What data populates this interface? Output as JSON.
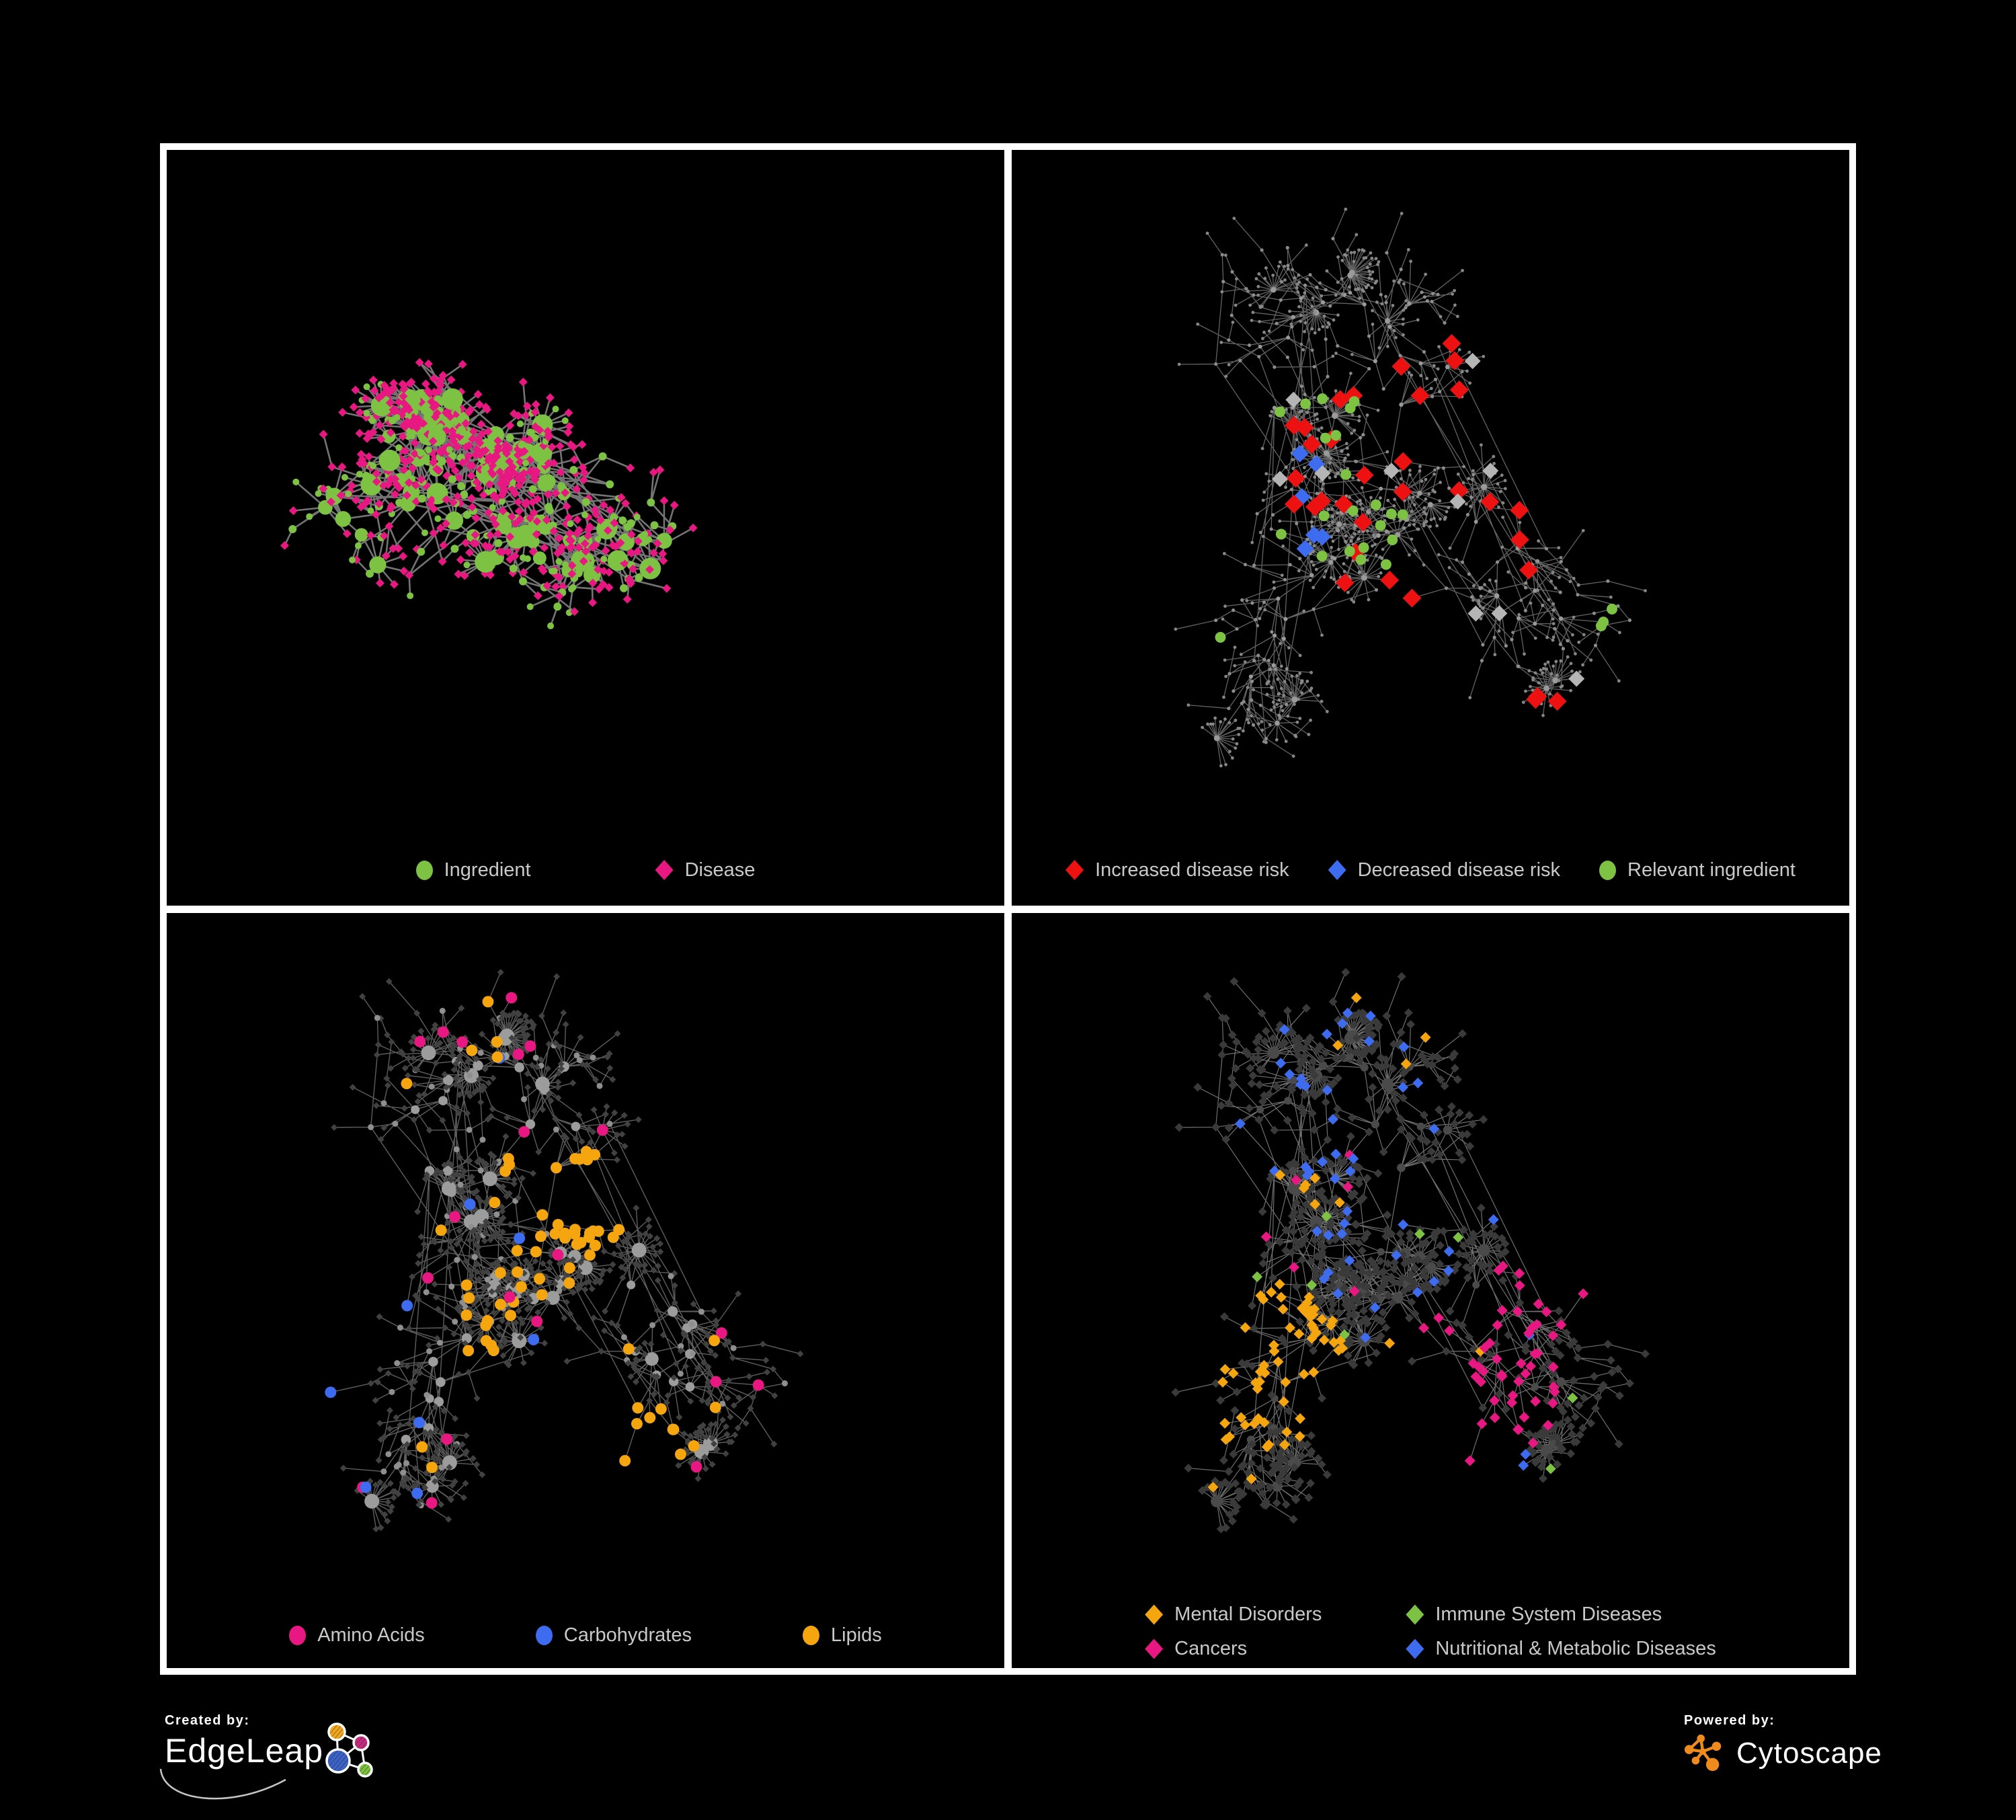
{
  "branding": {
    "created_by": "Created by:",
    "edgeleap": "EdgeLeap",
    "powered_by": "Powered by:",
    "cytoscape": "Cytoscape"
  },
  "colors": {
    "green": "#7dc242",
    "pink": "#e81781",
    "red": "#ed1111",
    "blue": "#3e6cf0",
    "orange": "#f5a50d",
    "silver": "#b5b5b5",
    "cytoscape_orange": "#ef8b1c",
    "legend_text": "#c9c9c9"
  },
  "panels": [
    {
      "id": "ingredient-disease",
      "legend": [
        {
          "shape": "circle",
          "color": "#7dc242",
          "label": "Ingredient"
        },
        {
          "shape": "diamond",
          "color": "#e81781",
          "label": "Disease"
        }
      ],
      "network": {
        "seed": 11,
        "nodes": 460,
        "roots": 6,
        "step": 42,
        "spread": 2.7,
        "centralBias": 0.45,
        "stars": 26,
        "starMin": 6,
        "starMax": 16,
        "starDist": 33,
        "cross": 46,
        "hubDeg": 5,
        "inset": [
          80,
          55,
          175
        ],
        "edge": {
          "color": "#7a7a7a",
          "width": 2.6,
          "opacity": 0.95
        },
        "styles": {
          "hub": {
            "shape": "circle",
            "color": "#7dc242",
            "rBase": 5.5,
            "rDeg": 0.9,
            "rMax": 16
          },
          "mid": [
            {
              "shape": "circle",
              "color": "#7dc242",
              "r": 6,
              "p": 0.5
            },
            {
              "shape": "diamond",
              "color": "#e81781",
              "r": 6.5,
              "p": 0.5
            }
          ],
          "leaf": [
            {
              "shape": "diamond",
              "color": "#e81781",
              "r": 6.5,
              "p": 0.82
            },
            {
              "shape": "circle",
              "color": "#7dc242",
              "r": 5,
              "p": 0.18
            }
          ]
        },
        "highlights": []
      }
    },
    {
      "id": "disease-risk",
      "legend": [
        {
          "shape": "diamond",
          "color": "#ed1111",
          "label": "Increased disease risk"
        },
        {
          "shape": "diamond",
          "color": "#3e6cf0",
          "label": "Decreased disease risk"
        },
        {
          "shape": "circle",
          "color": "#7dc242",
          "label": "Relevant ingredient"
        }
      ],
      "network": {
        "seed": 77,
        "nodes": 540,
        "roots": 7,
        "step": 44,
        "spread": 2.3,
        "centralBias": 0.3,
        "stars": 30,
        "starMin": 5,
        "starMax": 22,
        "starDist": 30,
        "cross": 26,
        "hubDeg": 5,
        "inset": [
          60,
          45,
          165
        ],
        "edge": {
          "color": "#6e6e6e",
          "width": 1.3,
          "opacity": 0.9
        },
        "styles": {
          "hub": {
            "shape": "circle",
            "color": "#9a9a9a",
            "rBase": 2.4,
            "rDeg": 0.1,
            "rMax": 5
          },
          "mid": [
            {
              "shape": "circle",
              "color": "#8d8d8d",
              "r": 2.6,
              "p": 1
            }
          ],
          "leaf": [
            {
              "shape": "circle",
              "color": "#868686",
              "r": 2.4,
              "p": 1
            }
          ]
        },
        "highlights": [
          {
            "name": "increased-risk",
            "shape": "diamond",
            "color": "#ed1111",
            "r": 14,
            "clusters": [
              [
                0.42,
                0.44,
                0.165,
                24
              ],
              [
                0.63,
                0.52,
                0.05,
                3
              ],
              [
                0.6,
                0.79,
                0.075,
                3
              ],
              [
                0.94,
                0.3,
                0.05,
                1
              ],
              [
                0.53,
                0.27,
                0.04,
                2
              ]
            ]
          },
          {
            "name": "decreased-risk",
            "shape": "diamond",
            "color": "#3e6cf0",
            "r": 13,
            "clusters": [
              [
                0.345,
                0.5,
                0.05,
                4
              ],
              [
                0.89,
                0.355,
                0.045,
                2
              ],
              [
                0.36,
                0.4,
                0.035,
                2
              ]
            ]
          },
          {
            "name": "neutral",
            "shape": "diamond",
            "color": "#b5b5b5",
            "r": 12,
            "clusters": [
              [
                0.46,
                0.42,
                0.16,
                6
              ],
              [
                0.7,
                0.74,
                0.045,
                1
              ],
              [
                0.56,
                0.6,
                0.05,
                2
              ],
              [
                0.3,
                0.33,
                0.04,
                1
              ]
            ]
          },
          {
            "name": "relevant-ingredient",
            "shape": "circle",
            "color": "#7dc242",
            "r": 8,
            "clusters": [
              [
                0.37,
                0.43,
                0.125,
                18
              ],
              [
                0.74,
                0.64,
                0.05,
                3
              ],
              [
                0.45,
                0.6,
                0.08,
                3
              ],
              [
                0.12,
                0.36,
                0.035,
                2
              ],
              [
                0.67,
                0.4,
                0.04,
                1
              ],
              [
                0.25,
                0.7,
                0.05,
                1
              ]
            ]
          }
        ]
      }
    },
    {
      "id": "nutrients",
      "legend": [
        {
          "shape": "circle",
          "color": "#e81781",
          "label": "Amino Acids"
        },
        {
          "shape": "circle",
          "color": "#3e6cf0",
          "label": "Carbohydrates"
        },
        {
          "shape": "circle",
          "color": "#f5a50d",
          "label": "Lipids"
        }
      ],
      "network": {
        "seed": 77,
        "nodes": 540,
        "roots": 7,
        "step": 44,
        "spread": 2.3,
        "centralBias": 0.3,
        "stars": 30,
        "starMin": 5,
        "starMax": 22,
        "starDist": 30,
        "cross": 26,
        "hubDeg": 5,
        "inset": [
          60,
          45,
          165
        ],
        "edge": {
          "color": "#6f6f6f",
          "width": 1.4,
          "opacity": 0.85
        },
        "styles": {
          "hub": {
            "shape": "circle",
            "color": "#9c9c9c",
            "rBase": 4.5,
            "rDeg": 0.4,
            "rMax": 11
          },
          "mid": [
            {
              "shape": "circle",
              "color": "#8f8f8f",
              "r": 4.5,
              "p": 0.55
            },
            {
              "shape": "diamond",
              "color": "#414141",
              "r": 5,
              "p": 0.45
            }
          ],
          "leaf": [
            {
              "shape": "diamond",
              "color": "#414141",
              "r": 5,
              "p": 1
            }
          ]
        },
        "highlights": [
          {
            "name": "lipids",
            "shape": "circle",
            "color": "#f5a50d",
            "r": 8.5,
            "clusters": [
              [
                0.5,
                0.38,
                0.06,
                26
              ],
              [
                0.45,
                0.54,
                0.1,
                16
              ],
              [
                0.56,
                0.7,
                0.05,
                7
              ],
              [
                0.5,
                0.52,
                0.46,
                24
              ]
            ]
          },
          {
            "name": "carbohydrates",
            "shape": "circle",
            "color": "#3e6cf0",
            "r": 8.5,
            "clusters": [
              [
                0.51,
                0.385,
                0.05,
                8
              ],
              [
                0.52,
                0.5,
                0.46,
                9
              ]
            ]
          },
          {
            "name": "amino-acids",
            "shape": "circle",
            "color": "#e81781",
            "r": 8.5,
            "clusters": [
              [
                0.5,
                0.55,
                0.48,
                20
              ],
              [
                0.44,
                0.05,
                0.03,
                1
              ],
              [
                0.06,
                0.42,
                0.03,
                1
              ]
            ]
          }
        ]
      }
    },
    {
      "id": "disease-categories",
      "legend": [
        {
          "shape": "diamond",
          "color": "#f5a50d",
          "label": "Mental Disorders"
        },
        {
          "shape": "diamond",
          "color": "#7dc242",
          "label": "Immune System Diseases"
        },
        {
          "shape": "diamond",
          "color": "#e81781",
          "label": "Cancers"
        },
        {
          "shape": "diamond",
          "color": "#3e6cf0",
          "label": "Nutritional & Metabolic Diseases"
        }
      ],
      "network": {
        "seed": 77,
        "nodes": 540,
        "roots": 7,
        "step": 44,
        "spread": 2.3,
        "centralBias": 0.3,
        "stars": 30,
        "starMin": 5,
        "starMax": 22,
        "starDist": 30,
        "cross": 26,
        "hubDeg": 5,
        "inset": [
          60,
          45,
          165
        ],
        "edge": {
          "color": "#8c8c8c",
          "width": 1.2,
          "opacity": 0.8
        },
        "styles": {
          "hub": {
            "shape": "circle",
            "color": "#4a4a4a",
            "rBase": 4,
            "rDeg": 0.3,
            "rMax": 9
          },
          "mid": [
            {
              "shape": "diamond",
              "color": "#3a3a3a",
              "r": 6.5,
              "p": 1
            }
          ],
          "leaf": [
            {
              "shape": "diamond",
              "color": "#3a3a3a",
              "r": 6.5,
              "p": 1
            }
          ]
        },
        "highlights": [
          {
            "name": "mental-disorders",
            "shape": "diamond",
            "color": "#f5a50d",
            "r": 8,
            "clusters": [
              [
                0.3,
                0.6,
                0.1,
                62
              ],
              [
                0.36,
                0.33,
                0.05,
                4
              ],
              [
                0.47,
                0.52,
                0.42,
                10
              ],
              [
                0.15,
                0.42,
                0.05,
                4
              ]
            ]
          },
          {
            "name": "cancers",
            "shape": "diamond",
            "color": "#e81781",
            "r": 8,
            "clusters": [
              [
                0.55,
                0.62,
                0.105,
                38
              ],
              [
                0.63,
                0.5,
                0.06,
                10
              ],
              [
                0.87,
                0.27,
                0.05,
                8
              ],
              [
                0.52,
                0.55,
                0.42,
                8
              ]
            ]
          },
          {
            "name": "nutritional-metabolic",
            "shape": "diamond",
            "color": "#3e6cf0",
            "r": 8,
            "clusters": [
              [
                0.93,
                0.7,
                0.055,
                12
              ],
              [
                0.56,
                0.76,
                0.07,
                8
              ],
              [
                0.62,
                0.42,
                0.45,
                36
              ],
              [
                0.3,
                0.15,
                0.2,
                10
              ]
            ]
          },
          {
            "name": "immune-system",
            "shape": "diamond",
            "color": "#7dc242",
            "r": 8,
            "clusters": [
              [
                0.52,
                0.5,
                0.28,
                8
              ],
              [
                0.4,
                0.88,
                0.06,
                2
              ]
            ]
          }
        ]
      }
    }
  ]
}
